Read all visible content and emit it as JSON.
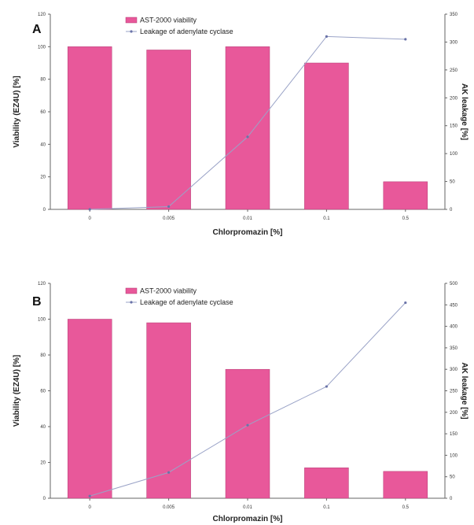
{
  "legend": {
    "bar_label": "AST-2000 viability",
    "line_label": "Leakage of adenylate cyclase"
  },
  "colors": {
    "bar": "#e8589a",
    "line": "#9aa3c7",
    "point": "#6a73a8"
  },
  "chart_data": [
    {
      "type": "bar",
      "panel": "A",
      "categories": [
        "0",
        "0.005",
        "0.01",
        "0.1",
        "0.5"
      ],
      "xlabel": "Chlorpromazin [%]",
      "ylabel": "Viability (EZ4U) [%]",
      "y2label": "AK leakage [%]",
      "ylim": [
        0,
        120
      ],
      "y2lim": [
        0,
        350
      ],
      "yticks": [
        "0",
        "20",
        "40",
        "60",
        "80",
        "100",
        "120"
      ],
      "y2ticks": [
        "0",
        "50",
        "100",
        "150",
        "200",
        "250",
        "300",
        "350"
      ],
      "legend_position": "top-center",
      "series": [
        {
          "name": "AST-2000 viability",
          "type": "bar",
          "axis": "left",
          "values": [
            100,
            98,
            100,
            90,
            17
          ]
        },
        {
          "name": "Leakage of adenylate cyclase",
          "type": "line",
          "axis": "right",
          "values": [
            0,
            5,
            130,
            310,
            305
          ]
        }
      ]
    },
    {
      "type": "bar",
      "panel": "B",
      "categories": [
        "0",
        "0.005",
        "0.01",
        "0.1",
        "0.5"
      ],
      "xlabel": "Chlorpromazin [%]",
      "ylabel": "Viability (EZ4U) [%]",
      "y2label": "AK leakage [%]",
      "ylim": [
        0,
        120
      ],
      "y2lim": [
        0,
        500
      ],
      "yticks": [
        "0",
        "20",
        "40",
        "60",
        "80",
        "100",
        "120"
      ],
      "y2ticks": [
        "0",
        "50",
        "100",
        "150",
        "200",
        "250",
        "300",
        "350",
        "400",
        "450",
        "500"
      ],
      "legend_position": "top-center",
      "series": [
        {
          "name": "AST-2000 viability",
          "type": "bar",
          "axis": "left",
          "values": [
            100,
            98,
            72,
            17,
            15
          ]
        },
        {
          "name": "Leakage of adenylate cyclase",
          "type": "line",
          "axis": "right",
          "values": [
            5,
            60,
            170,
            260,
            455
          ]
        }
      ]
    }
  ]
}
